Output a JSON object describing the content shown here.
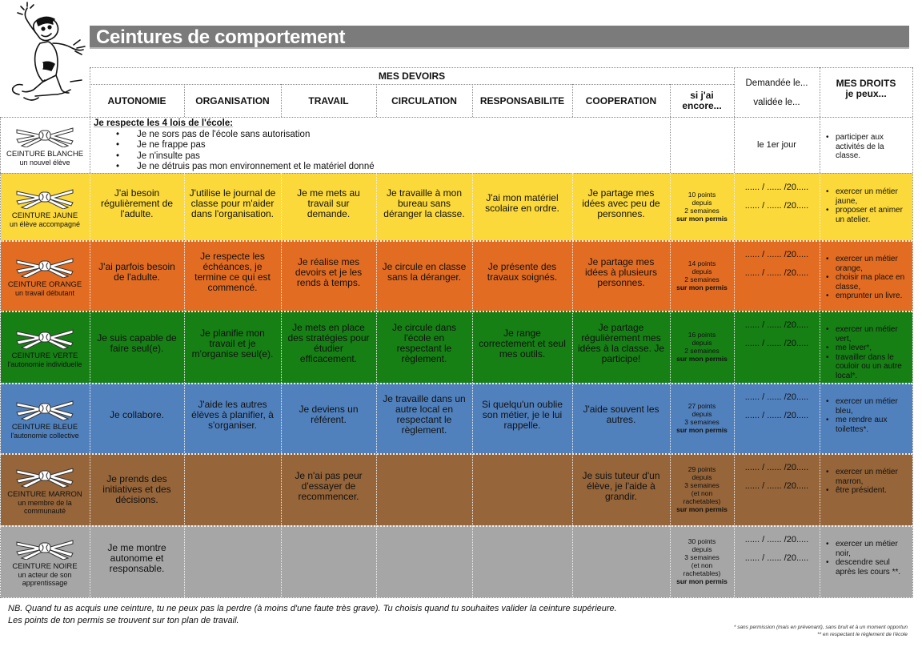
{
  "title": "Ceintures de comportement",
  "header": {
    "group_label": "MES DEVOIRS",
    "columns": [
      "AUTONOMIE",
      "ORGANISATION",
      "TRAVAIL",
      "CIRCULATION",
      "RESPONSABILITE",
      "COOPERATION"
    ],
    "encore_label_1": "si j'ai",
    "encore_label_2": "encore...",
    "dates_label_1": "Demandée le...",
    "dates_label_2": "validée le...",
    "rights_label_1": "MES DROITS",
    "rights_label_2": "je peux..."
  },
  "white_belt": {
    "name": "CEINTURE BLANCHE",
    "subtitle": "un nouvel élève",
    "color": "#ffffff",
    "rules_title": "Je respecte les 4 lois de l'école:",
    "rules": [
      "Je ne sors pas de l'école sans autorisation",
      "Je ne frappe pas",
      "Je n'insulte pas",
      "Je ne détruis pas mon environnement et le matériel donné"
    ],
    "date": "le 1er jour",
    "rights": [
      "participer aux activités de la classe."
    ]
  },
  "belts": [
    {
      "name": "CEINTURE JAUNE",
      "subtitle": "un élève accompagné",
      "color": "#fcd93a",
      "duties": [
        "J'ai besoin régulièrement de l'adulte.",
        "J'utilise le journal de classe pour m'aider dans l'organisation.",
        "Je me mets au travail sur demande.",
        "Je travaille à mon bureau sans déranger la classe.",
        "J'ai mon matériel scolaire en ordre.",
        "Je partage mes idées avec peu de personnes."
      ],
      "points": [
        "10 points",
        "depuis",
        "2 semaines"
      ],
      "points_bold": "sur mon permis",
      "dates": [
        "...... / ...... /20.....",
        "...... / ...... /20....."
      ],
      "rights": [
        "exercer un métier jaune,",
        "proposer et animer un atelier."
      ]
    },
    {
      "name": "CEINTURE ORANGE",
      "subtitle": "un travail débutant",
      "color": "#e36c23",
      "duties": [
        "J'ai parfois besoin de l'adulte.",
        "Je respecte les échéances, je termine ce qui est commencé.",
        "Je réalise  mes devoirs et je les rends à temps.",
        "Je circule en classe sans la déranger.",
        "Je présente des travaux soignés.",
        "Je partage mes idées à plusieurs personnes."
      ],
      "points": [
        "14 points",
        "depuis",
        "2 semaines"
      ],
      "points_bold": "sur mon permis",
      "dates": [
        "...... / ...... /20.....",
        "...... / ...... /20....."
      ],
      "rights": [
        "exercer un métier orange,",
        "choisir ma place en classe,",
        "emprunter un livre."
      ]
    },
    {
      "name": "CEINTURE VERTE",
      "subtitle": "l'autonomie individuelle",
      "color": "#168015",
      "duties": [
        "Je suis capable de faire seul(e).",
        "Je planifie mon travail et je m'organise seul(e).",
        "Je mets en place des stratégies pour étudier efficacement.",
        "Je circule dans l'école en respectant le règlement.",
        "Je range correctement et seul mes outils.",
        "Je partage régulièrement mes idées à la classe. Je participe!"
      ],
      "points": [
        "16 points",
        "depuis",
        "2 semaines"
      ],
      "points_bold": "sur mon permis",
      "dates": [
        "...... / ...... /20.....",
        "...... / ...... /20....."
      ],
      "rights": [
        "exercer un métier vert,",
        "me lever*,",
        "travailler dans le couloir ou un autre local*."
      ]
    },
    {
      "name": "CEINTURE BLEUE",
      "subtitle": "l'autonomie collective",
      "color": "#5181bd",
      "duties": [
        "Je collabore.",
        "J'aide les autres élèves à planifier, à s'organiser.",
        "Je deviens un référent.",
        "Je travaille dans un autre local en respectant le règlement.",
        "Si quelqu'un oublie son métier, je le lui rappelle.",
        "J'aide souvent les autres."
      ],
      "points": [
        "27 points",
        "depuis",
        "3 semaines"
      ],
      "points_bold": "sur mon permis",
      "dates": [
        "...... / ...... /20.....",
        "...... / ...... /20....."
      ],
      "rights": [
        "exercer un métier bleu,",
        "me rendre aux toilettes*."
      ]
    },
    {
      "name": "CEINTURE MARRON",
      "subtitle": "un membre de la communauté",
      "color": "#96653a",
      "duties": [
        "Je prends des initiatives et des décisions.",
        "",
        "Je n'ai pas peur d'essayer de recommencer.",
        "",
        "",
        "Je suis tuteur d'un élève, je l'aide à grandir."
      ],
      "points": [
        "29 points",
        "depuis",
        "3 semaines",
        "(et non",
        "rachetables)"
      ],
      "points_bold": "sur mon permis",
      "dates": [
        "...... / ...... /20.....",
        "...... / ...... /20....."
      ],
      "rights": [
        "exercer un métier marron,",
        "être président."
      ]
    },
    {
      "name": "CEINTURE NOIRE",
      "subtitle": "un acteur de son apprentissage",
      "color": "#a6a6a6",
      "duties": [
        "Je me montre autonome et responsable.",
        "",
        "",
        "",
        "",
        ""
      ],
      "points": [
        "30 points",
        "depuis",
        "3 semaines",
        "(et non",
        "rachetables)"
      ],
      "points_bold": "sur mon permis",
      "dates": [
        "...... / ...... /20.....",
        "...... / ...... /20....."
      ],
      "rights": [
        "exercer un métier noir,",
        "descendre seul après les cours **."
      ]
    }
  ],
  "note_line_1": "NB. Quand tu as acquis une ceinture, tu ne peux pas la perdre (à moins d'une faute très grave). Tu choisis quand tu souhaites valider la ceinture supérieure.",
  "note_line_2": "Les points de ton permis se trouvent sur ton plan de travail.",
  "footnote_1": "* sans permission (mais en prévenant), sans bruit et à un moment opportun",
  "footnote_2": "** en respectant le règlement de l'école"
}
